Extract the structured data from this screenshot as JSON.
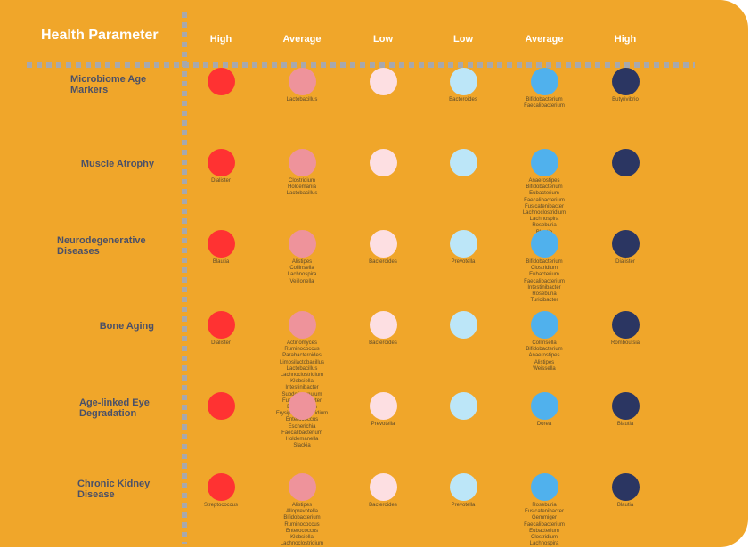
{
  "header": {
    "parameter_label": "Health Parameter",
    "columns": [
      "High",
      "Average",
      "Low",
      "Low",
      "Average",
      "High"
    ]
  },
  "colors": {
    "high_red": "#ff3232",
    "average_pink": "#ee939b",
    "low_pink": "#fddfe2",
    "low_blue": "#bce6f8",
    "average_blue": "#50b1ed",
    "high_navy": "#2b3662",
    "background": "#f0a62a",
    "grid_dots": "#a7a8ad"
  },
  "rows": [
    {
      "label": "Microbiome Age Markers",
      "cells": [
        "",
        "Lactobacillus",
        "",
        "Bacteroides",
        "Bifidobacterium\nFaecalibacterium",
        "Butyrivibrio"
      ]
    },
    {
      "label": "Muscle Atrophy",
      "cells": [
        "Dialister",
        "Clostridium\nHoldemania\nLactobacillus",
        "",
        "",
        "Anaerostipes\nBifidobacterium\nEubacterium\nFaecalibacterium\nFusicatenibacter\nLachnoclostridium\nLachnospira\nRoseburia\nBlautia",
        ""
      ]
    },
    {
      "label": "Neurodegenerative Diseases",
      "cells": [
        "Blautia",
        "Alistipes\nCollinsella\nLachnospira\nVeillonella",
        "Bacteroides",
        "Prevotella",
        "Bifidobacterium\nClostridium\nEubacterium\nFaecalibacterium\nIntestinibacter\nRoseburia\nTuricibacter",
        "Dialister"
      ]
    },
    {
      "label": "Bone Aging",
      "cells": [
        "Dialister",
        "Actinomyces\nRuminococcus\nParabacteroides\nLimosilactobacillus\nLactobacillus\nLachnoclostridium\nKlebsiella\nIntestinibacter\nSubdoligranulum\nFusicatenibacter\nEubacterium\nErysipelatoclostridium\nEnterococcus\nEscherichia\nFaecalibacterium\nHoldemanella\nSlackia",
        "Bacteroides",
        "",
        "Collinsella\nBifidobacterium\nAnaerostipes\nAlistipes\nWeissella",
        "Romboutsia"
      ]
    },
    {
      "label": "Age-linked Eye Degradation",
      "cells": [
        "",
        "",
        "Prevotella",
        "",
        "Dorea",
        "Blautia"
      ]
    },
    {
      "label": "Chronic Kidney Disease",
      "cells": [
        "Streptococcus",
        "Alistipes\nAlloprevotella\nBifidobacterium\nRuminococcus\nEnterococcus\nKlebsiella\nLachnoclostridium",
        "Bacteroides",
        "Prevotella",
        "Roseburia\nFusicatenibacter\nGemmiger\nFaecalibacterium\nEubacterium\nClostridium\nLachnospira",
        "Blautia"
      ]
    }
  ]
}
